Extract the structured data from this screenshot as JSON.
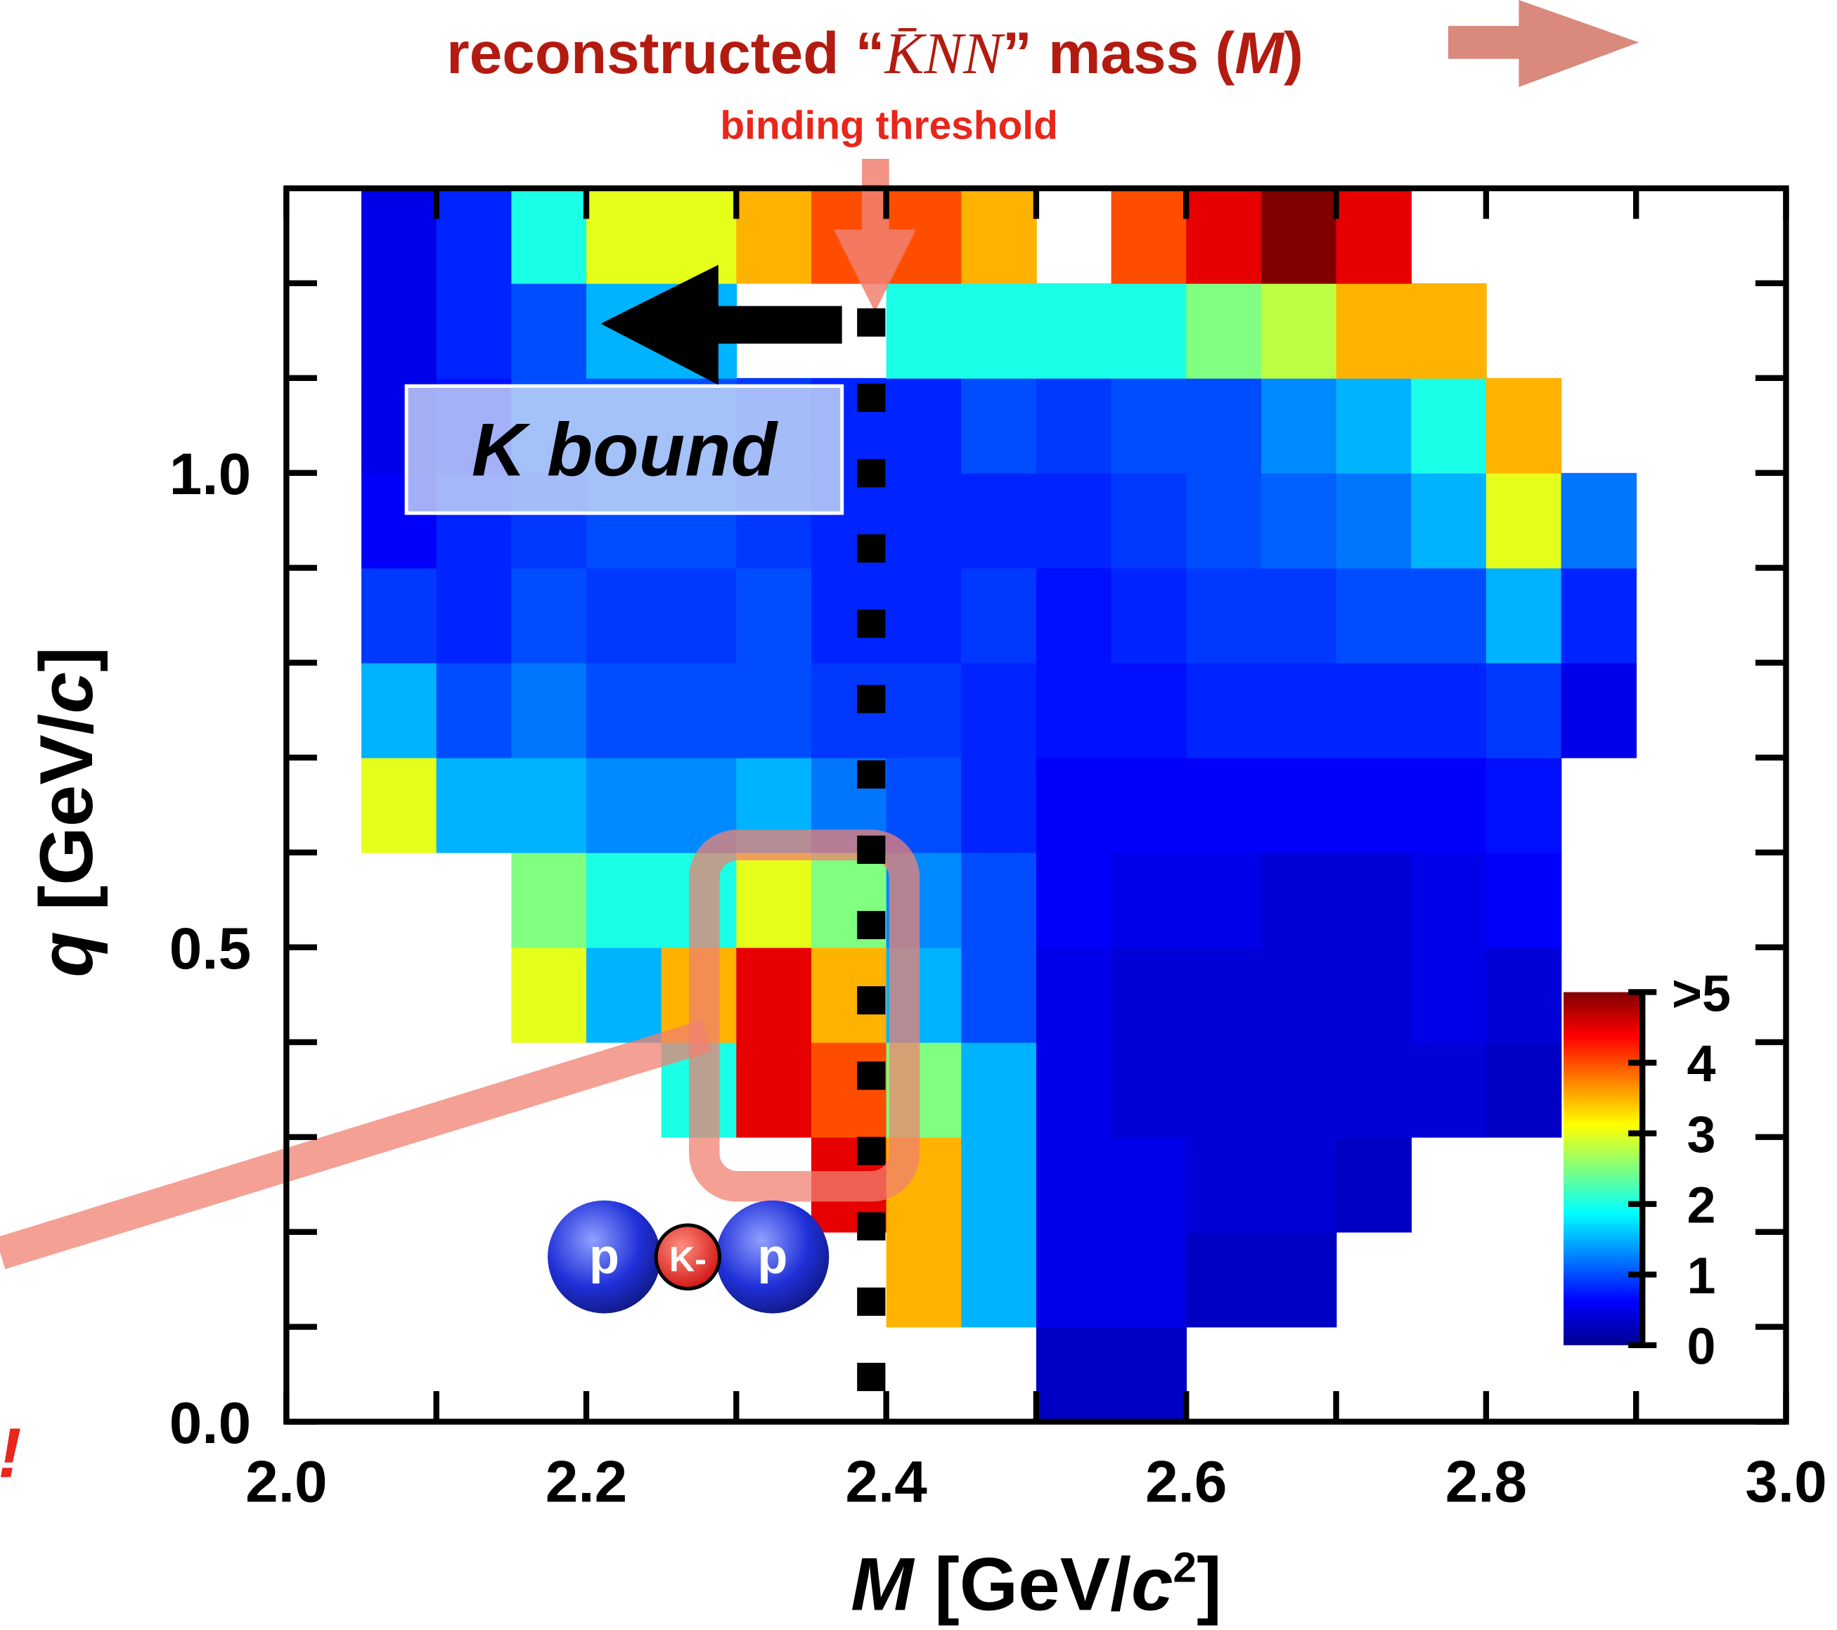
{
  "chart_data": {
    "type": "heatmap",
    "title_parts": [
      "reconstructed “",
      "K̄NN",
      "” mass (",
      "M",
      ")"
    ],
    "annotation_threshold": "binding threshold",
    "annotation_region": "K bound",
    "molecule_labels": [
      "p",
      "K-",
      "p"
    ],
    "edge_mark": "!",
    "xlabel_parts": [
      "M",
      " [GeV/",
      "c",
      "2",
      "]"
    ],
    "ylabel_parts": [
      "q",
      " [GeV/",
      "c",
      "]"
    ],
    "threshold": 2.39,
    "xlim": [
      2.0,
      3.0
    ],
    "ylim": [
      0,
      1.3
    ],
    "xticks": [
      {
        "value": 2.0,
        "label": "2.0"
      },
      2.2,
      2.4,
      2.6,
      2.8,
      {
        "value": 3.0,
        "label": "3.0"
      }
    ],
    "xminor_ticks": [
      2.1,
      2.3,
      2.5,
      2.7,
      2.9
    ],
    "yticks": [
      {
        "value": 0,
        "label": "0.0"
      },
      0.5,
      {
        "value": 1.0,
        "label": "1.0"
      }
    ],
    "yminor_ticks": [
      0.1,
      0.2,
      0.3,
      0.4,
      0.6,
      0.7,
      0.8,
      0.9,
      1.1,
      1.2
    ],
    "xbins": [
      2.0,
      2.05,
      2.1,
      2.15,
      2.2,
      2.25,
      2.3,
      2.35,
      2.4,
      2.45,
      2.5,
      2.55,
      2.6,
      2.65,
      2.7,
      2.75,
      2.8,
      2.85,
      2.9,
      2.95,
      3.0
    ],
    "ybins": [
      0,
      0.1,
      0.2,
      0.3,
      0.4,
      0.5,
      0.6,
      0.7,
      0.8,
      0.9,
      1.0,
      1.1,
      1.2,
      1.3
    ],
    "z": [
      [
        null,
        null,
        null,
        null,
        null,
        null,
        null,
        null,
        null,
        null,
        0.3,
        0.3,
        null,
        null,
        null,
        null,
        null,
        null,
        null,
        null
      ],
      [
        null,
        null,
        null,
        null,
        null,
        null,
        null,
        null,
        3.5,
        1.5,
        0.5,
        0.5,
        0.3,
        0.3,
        null,
        null,
        null,
        null,
        null,
        null
      ],
      [
        null,
        null,
        null,
        null,
        null,
        null,
        null,
        4.5,
        3.5,
        1.5,
        0.5,
        0.5,
        0.4,
        0.4,
        0.3,
        null,
        null,
        null,
        null,
        null
      ],
      [
        null,
        null,
        null,
        null,
        null,
        2,
        4.5,
        4,
        2.5,
        1.5,
        0.5,
        0.4,
        0.4,
        0.4,
        0.4,
        0.4,
        0.3,
        null,
        null,
        null
      ],
      [
        null,
        null,
        null,
        3,
        1.5,
        3.5,
        4.5,
        3.5,
        1.5,
        1,
        0.5,
        0.4,
        0.4,
        0.4,
        0.4,
        0.5,
        0.4,
        null,
        null,
        null
      ],
      [
        null,
        null,
        null,
        2.5,
        2,
        2,
        3,
        2.5,
        1.3,
        1,
        0.6,
        0.5,
        0.5,
        0.4,
        0.4,
        0.5,
        0.6,
        null,
        null,
        null
      ],
      [
        null,
        3,
        1.5,
        1.5,
        1.3,
        1.3,
        1.5,
        1.2,
        1,
        0.8,
        0.6,
        0.6,
        0.6,
        0.6,
        0.6,
        0.6,
        0.7,
        null,
        null,
        null
      ],
      [
        null,
        1.5,
        1,
        1.2,
        1,
        1,
        1,
        0.9,
        0.9,
        0.8,
        0.7,
        0.7,
        0.8,
        0.8,
        0.8,
        0.8,
        0.9,
        0.5,
        null,
        null
      ],
      [
        null,
        0.9,
        0.8,
        1,
        0.9,
        0.9,
        1,
        0.8,
        0.8,
        0.9,
        0.7,
        0.8,
        0.9,
        0.9,
        1,
        1,
        1.5,
        0.8,
        null,
        null
      ],
      [
        null,
        0.6,
        0.8,
        0.9,
        1,
        1,
        0.9,
        0.8,
        0.8,
        0.8,
        0.8,
        0.9,
        1,
        1.1,
        1.2,
        1.5,
        3,
        1.2,
        null,
        null
      ],
      [
        null,
        0.5,
        0.7,
        1,
        1,
        1,
        0.9,
        0.8,
        0.8,
        1,
        0.9,
        1,
        1,
        1.3,
        1.5,
        2,
        3.5,
        null,
        null,
        null
      ],
      [
        null,
        0.5,
        0.8,
        1,
        1.5,
        1.5,
        null,
        null,
        2,
        2,
        2,
        2,
        2.5,
        2.8,
        3.5,
        3.5,
        null,
        null,
        null,
        null
      ],
      [
        null,
        0.5,
        0.8,
        2,
        3,
        3,
        3.5,
        4,
        4,
        3.5,
        null,
        4,
        4.5,
        5,
        4.5,
        null,
        null,
        null,
        null,
        null
      ]
    ],
    "zlim": [
      0,
      5
    ],
    "zticks": [
      0,
      1,
      2,
      3,
      4,
      {
        "value": 5,
        "label": ">5"
      }
    ],
    "colormap": [
      "#00008f",
      "#0000ff",
      "#0080ff",
      "#00ffff",
      "#80ff80",
      "#ffff00",
      "#ff8000",
      "#ff0000",
      "#800000"
    ]
  }
}
